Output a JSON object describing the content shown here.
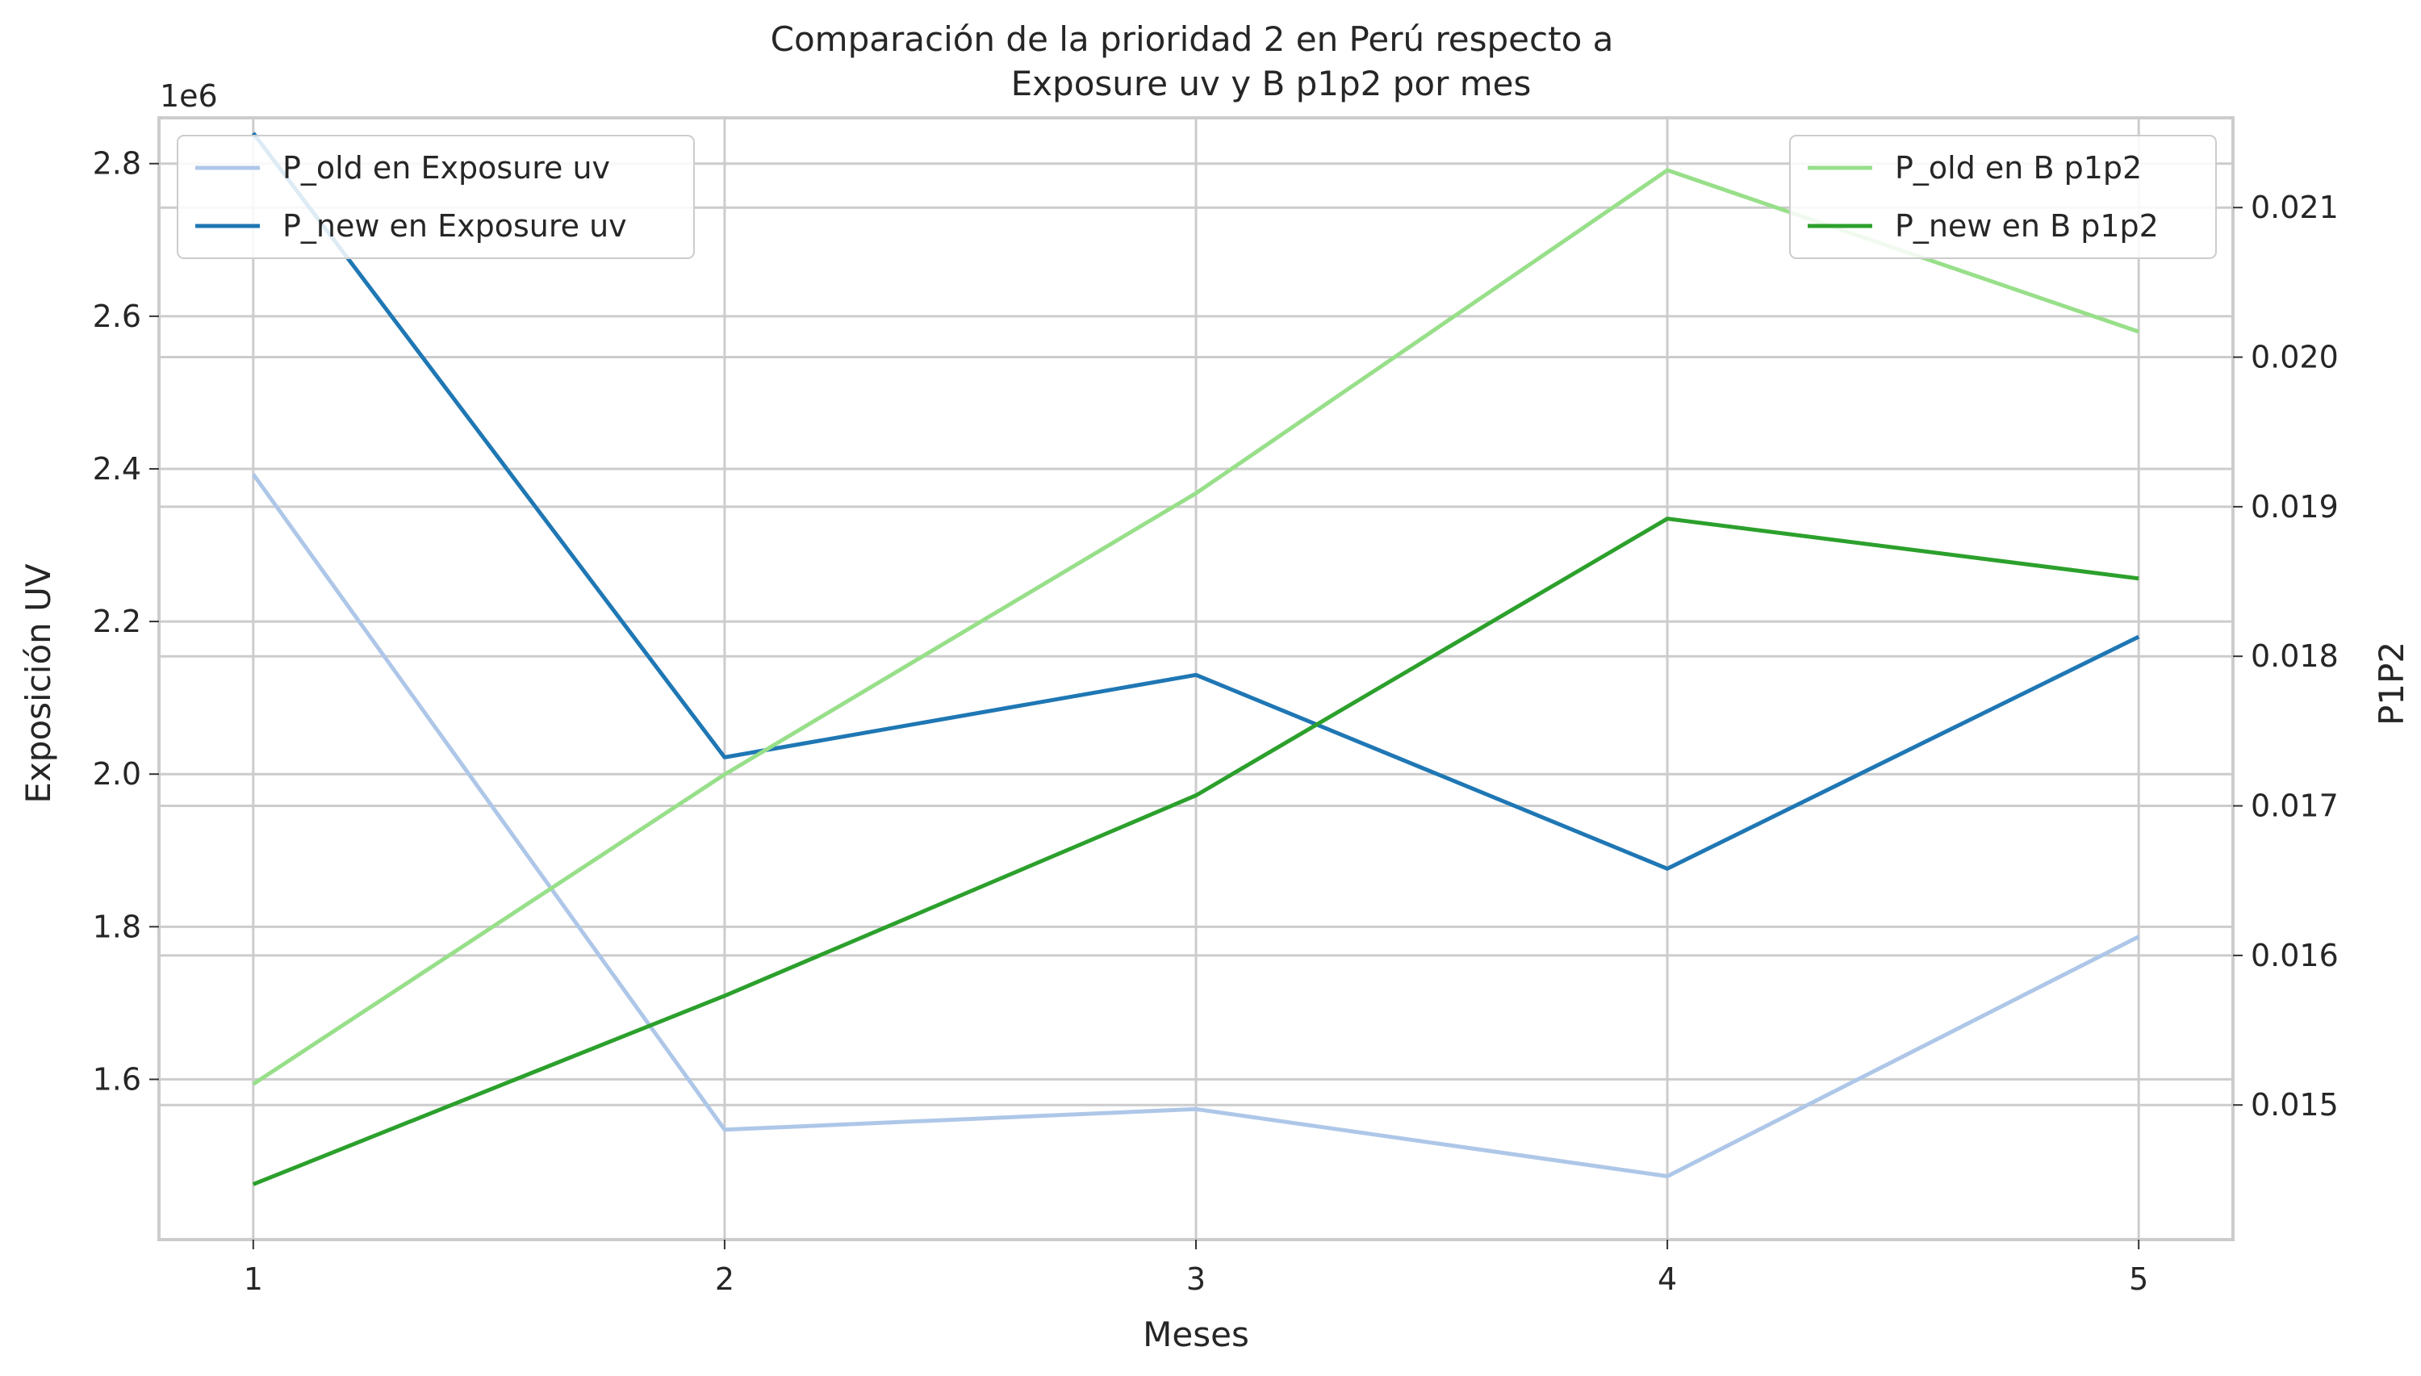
{
  "chart_data": {
    "type": "line",
    "title_lines": [
      "Comparación de la prioridad 2 en Perú respecto a",
      "Exposure uv y B p1p2 por mes"
    ],
    "xlabel": "Meses",
    "ylabel_left": "Exposición UV",
    "ylabel_right": "P1P2",
    "left_offset_label": "1e6",
    "x": [
      1,
      2,
      3,
      4,
      5
    ],
    "x_ticks": [
      "1",
      "2",
      "3",
      "4",
      "5"
    ],
    "xlim": [
      0.8,
      5.2
    ],
    "left_axis": {
      "ylim": [
        1.39,
        2.86
      ],
      "ticks": [
        1.6,
        1.8,
        2.0,
        2.2,
        2.4,
        2.6,
        2.8
      ],
      "tick_labels": [
        "1.6",
        "1.8",
        "2.0",
        "2.2",
        "2.4",
        "2.6",
        "2.8"
      ]
    },
    "right_axis": {
      "ylim": [
        0.0141,
        0.0216
      ],
      "ticks": [
        0.015,
        0.016,
        0.017,
        0.018,
        0.019,
        0.02,
        0.021
      ],
      "tick_labels": [
        "0.015",
        "0.016",
        "0.017",
        "0.018",
        "0.019",
        "0.020",
        "0.021"
      ]
    },
    "grid": true,
    "series": [
      {
        "name": "P_old en Exposure uv",
        "axis": "left",
        "color": "#aec7e8",
        "values": [
          2.393,
          1.534,
          1.561,
          1.473,
          1.787
        ]
      },
      {
        "name": "P_new en Exposure uv",
        "axis": "left",
        "color": "#1f77b4",
        "values": [
          2.84,
          2.022,
          2.13,
          1.876,
          2.18
        ]
      },
      {
        "name": "P_old en B p1p2",
        "axis": "right",
        "color": "#98df8a",
        "values": [
          0.01514,
          0.01721,
          0.01909,
          0.02125,
          0.02017
        ]
      },
      {
        "name": "P_new en B p1p2",
        "axis": "right",
        "color": "#2ca02c",
        "values": [
          0.01447,
          0.01573,
          0.01707,
          0.01892,
          0.01852
        ]
      }
    ],
    "legends": [
      {
        "position": "top-left",
        "series": [
          0,
          1
        ]
      },
      {
        "position": "top-right",
        "series": [
          2,
          3
        ]
      }
    ]
  }
}
